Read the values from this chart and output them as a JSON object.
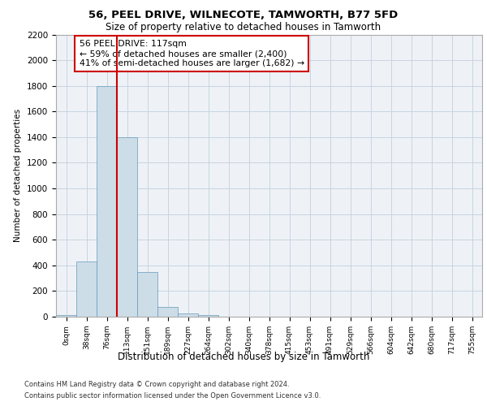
{
  "title1": "56, PEEL DRIVE, WILNECOTE, TAMWORTH, B77 5FD",
  "title2": "Size of property relative to detached houses in Tamworth",
  "xlabel": "Distribution of detached houses by size in Tamworth",
  "ylabel": "Number of detached properties",
  "categories": [
    "0sqm",
    "38sqm",
    "76sqm",
    "113sqm",
    "151sqm",
    "189sqm",
    "227sqm",
    "264sqm",
    "302sqm",
    "340sqm",
    "378sqm",
    "415sqm",
    "453sqm",
    "491sqm",
    "529sqm",
    "566sqm",
    "604sqm",
    "642sqm",
    "680sqm",
    "717sqm",
    "755sqm"
  ],
  "bar_values": [
    15,
    430,
    1800,
    1400,
    350,
    75,
    25,
    10,
    2,
    0,
    0,
    0,
    0,
    0,
    0,
    0,
    0,
    0,
    0,
    0,
    0
  ],
  "bar_color": "#ccdde8",
  "bar_edge_color": "#6699bb",
  "ylim": [
    0,
    2200
  ],
  "yticks": [
    0,
    200,
    400,
    600,
    800,
    1000,
    1200,
    1400,
    1600,
    1800,
    2000,
    2200
  ],
  "property_line_after_bar": 2,
  "property_line_color": "#cc0000",
  "annotation_text": "56 PEEL DRIVE: 117sqm\n← 59% of detached houses are smaller (2,400)\n41% of semi-detached houses are larger (1,682) →",
  "annotation_box_color": "#ffffff",
  "annotation_box_edge": "#cc0000",
  "footnote1": "Contains HM Land Registry data © Crown copyright and database right 2024.",
  "footnote2": "Contains public sector information licensed under the Open Government Licence v3.0.",
  "background_color": "#eef2f7",
  "grid_color": "#c8d4e0"
}
